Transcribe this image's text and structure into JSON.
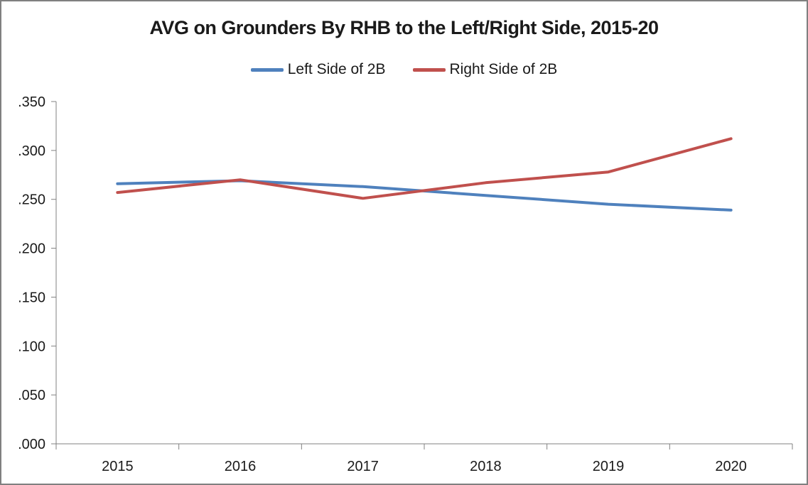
{
  "window": {
    "background_color": "#ffffff",
    "border_color": "#808080"
  },
  "chart_data": {
    "type": "line",
    "title": "AVG on Grounders By RHB to the Left/Right Side, 2015-20",
    "categories": [
      "2015",
      "2016",
      "2017",
      "2018",
      "2019",
      "2020"
    ],
    "series": [
      {
        "name": "Left Side of 2B",
        "color": "#4F81BD",
        "values": [
          0.266,
          0.269,
          0.263,
          0.254,
          0.245,
          0.239
        ]
      },
      {
        "name": "Right Side of 2B",
        "color": "#C0504D",
        "values": [
          0.257,
          0.27,
          0.251,
          0.267,
          0.278,
          0.312
        ]
      }
    ],
    "xlabel": "",
    "ylabel": "",
    "ylim": [
      0.0,
      0.35
    ],
    "ytick_step": 0.05,
    "ytick_labels": [
      ".000",
      ".050",
      ".100",
      ".150",
      ".200",
      ".250",
      ".300",
      ".350"
    ],
    "grid": false,
    "legend_position": "top-center",
    "axis_color": "#808080",
    "tick_label_color": "#1a1a1a"
  }
}
